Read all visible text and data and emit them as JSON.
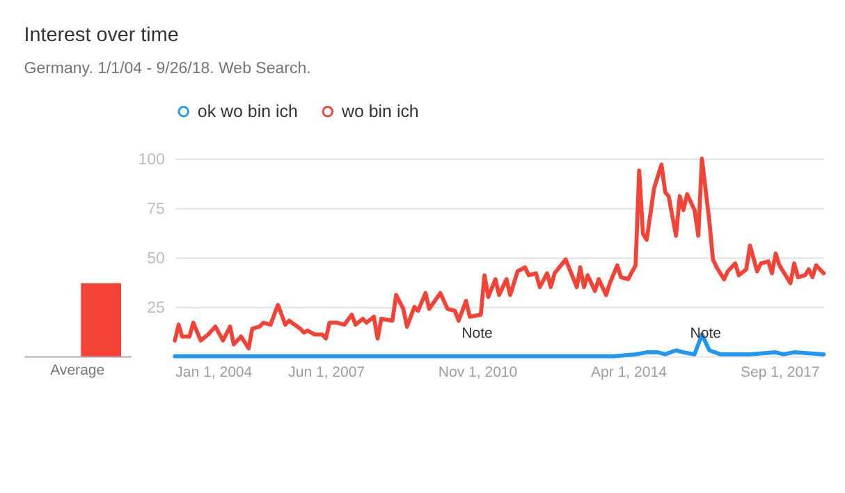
{
  "chart_data": [
    {
      "type": "bar",
      "title": "Interest over time",
      "subtitle": "Germany. 1/1/04 - 9/26/18. Web Search.",
      "categories": [
        "Average"
      ],
      "ylim": [
        0,
        100
      ],
      "tick_labels": "x",
      "series": [
        {
          "color": "#2196f3",
          "values": [
            0
          ]
        },
        {
          "color": "#f44336",
          "values": [
            37
          ]
        }
      ]
    },
    {
      "type": "line",
      "legend": "top left",
      "grid": "y",
      "line_style": "solid",
      "xlim": [
        "2004-01-01",
        "2018-09-01"
      ],
      "xticks": [
        {
          "value": "2004-01-01",
          "label": "Jan 1, 2004"
        },
        {
          "value": "2007-06-01",
          "label": "Jun 1, 2007"
        },
        {
          "value": "2010-11-01",
          "label": "Nov 1, 2010"
        },
        {
          "value": "2014-04-01",
          "label": "Apr 1, 2014"
        },
        {
          "value": "2017-09-01",
          "label": "Sep 1, 2017"
        }
      ],
      "ylim": [
        0,
        100
      ],
      "yticks": [
        {
          "value": 0,
          "label": null
        },
        25,
        50,
        75,
        100
      ],
      "annotations": [
        {
          "text": "Note",
          "x": "2010-11-01",
          "y": 0
        },
        {
          "text": "Note",
          "x": "2016-01-01",
          "y": 0
        }
      ],
      "series": [
        {
          "name": "ok wo bin ich",
          "color": "#2196f3",
          "x": [
            "2004-01",
            "2013-12",
            "2014-06",
            "2014-09",
            "2014-12",
            "2015-02",
            "2015-05",
            "2015-07",
            "2015-10",
            "2015-12",
            "2016-02",
            "2016-05",
            "2017-01",
            "2017-08",
            "2017-10",
            "2018-01",
            "2018-09"
          ],
          "values": [
            0,
            0,
            1,
            2,
            2,
            1,
            3,
            2,
            1,
            11,
            3,
            1,
            1,
            2,
            1,
            2,
            1
          ]
        },
        {
          "name": "wo bin ich",
          "color": "#f44336",
          "x": [
            "2004-01",
            "2004-02",
            "2004-03",
            "2004-05",
            "2004-06",
            "2004-08",
            "2004-10",
            "2004-12",
            "2005-02",
            "2005-04",
            "2005-05",
            "2005-07",
            "2005-09",
            "2005-10",
            "2005-12",
            "2006-01",
            "2006-03",
            "2006-05",
            "2006-07",
            "2006-08",
            "2006-11",
            "2006-12",
            "2007-01",
            "2007-03",
            "2007-05",
            "2007-06",
            "2007-07",
            "2007-09",
            "2007-11",
            "2008-01",
            "2008-02",
            "2008-04",
            "2008-05",
            "2008-07",
            "2008-08",
            "2008-09",
            "2008-12",
            "2009-01",
            "2009-03",
            "2009-04",
            "2009-06",
            "2009-07",
            "2009-09",
            "2009-10",
            "2010-01",
            "2010-03",
            "2010-05",
            "2010-06",
            "2010-08",
            "2010-09",
            "2010-12",
            "2011-01",
            "2011-02",
            "2011-04",
            "2011-05",
            "2011-07",
            "2011-08",
            "2011-10",
            "2011-12",
            "2012-01",
            "2012-03",
            "2012-04",
            "2012-06",
            "2012-07",
            "2012-08",
            "2012-11",
            "2013-02",
            "2013-03",
            "2013-04",
            "2013-05",
            "2013-07",
            "2013-08",
            "2013-10",
            "2013-11",
            "2014-01",
            "2014-02",
            "2014-04",
            "2014-06",
            "2014-07",
            "2014-08",
            "2014-09",
            "2014-11",
            "2015-01",
            "2015-02",
            "2015-03",
            "2015-05",
            "2015-06",
            "2015-07",
            "2015-08",
            "2015-10",
            "2015-11",
            "2015-12",
            "2016-02",
            "2016-03",
            "2016-04",
            "2016-06",
            "2016-07",
            "2016-09",
            "2016-10",
            "2016-12",
            "2017-01",
            "2017-03",
            "2017-04",
            "2017-06",
            "2017-07",
            "2017-08",
            "2017-09",
            "2017-12",
            "2018-01",
            "2018-02",
            "2018-04",
            "2018-05",
            "2018-06",
            "2018-07",
            "2018-09"
          ],
          "values": [
            8,
            16,
            10,
            10,
            17,
            8,
            11,
            15,
            8,
            15,
            6,
            10,
            4,
            14,
            15,
            17,
            16,
            26,
            16,
            18,
            14,
            12,
            13,
            11,
            11,
            9,
            17,
            17,
            16,
            21,
            16,
            19,
            17,
            20,
            9,
            19,
            18,
            31,
            24,
            15,
            25,
            23,
            32,
            24,
            32,
            24,
            23,
            18,
            28,
            20,
            21,
            41,
            30,
            39,
            31,
            39,
            31,
            43,
            45,
            41,
            42,
            35,
            42,
            35,
            42,
            49,
            35,
            45,
            35,
            41,
            33,
            39,
            31,
            37,
            46,
            40,
            39,
            46,
            94,
            62,
            59,
            85,
            97,
            83,
            81,
            61,
            81,
            74,
            82,
            74,
            61,
            100,
            68,
            49,
            45,
            39,
            43,
            47,
            41,
            44,
            56,
            43,
            47,
            48,
            42,
            52,
            46,
            37,
            47,
            40,
            41,
            44,
            40,
            46,
            42
          ]
        }
      ]
    }
  ]
}
